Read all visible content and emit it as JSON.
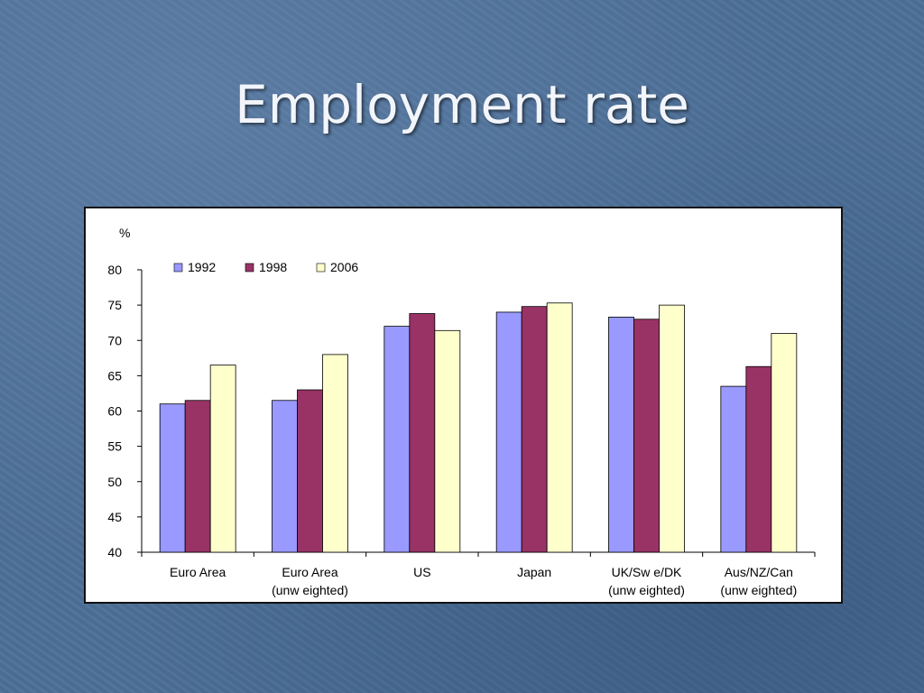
{
  "slide": {
    "title": "Employment rate"
  },
  "chart_data": {
    "type": "bar",
    "ylabel": "%",
    "ylim": [
      40,
      80
    ],
    "yticks": [
      40,
      45,
      50,
      55,
      60,
      65,
      70,
      75,
      80
    ],
    "grid": false,
    "legend_position": "top-left",
    "categories": [
      [
        "Euro Area"
      ],
      [
        "Euro Area",
        "(unw eighted)"
      ],
      [
        "US"
      ],
      [
        "Japan"
      ],
      [
        "UK/Sw e/DK",
        "(unw eighted)"
      ],
      [
        "Aus/NZ/Can",
        "(unw eighted)"
      ]
    ],
    "series": [
      {
        "name": "1992",
        "color": "#9999ff",
        "values": [
          61.0,
          61.5,
          72.0,
          74.0,
          73.3,
          63.5
        ]
      },
      {
        "name": "1998",
        "color": "#993366",
        "values": [
          61.5,
          63.0,
          73.8,
          74.8,
          73.0,
          66.3
        ]
      },
      {
        "name": "2006",
        "color": "#ffffcc",
        "values": [
          66.5,
          68.0,
          71.4,
          75.3,
          75.0,
          71.0
        ]
      }
    ]
  }
}
